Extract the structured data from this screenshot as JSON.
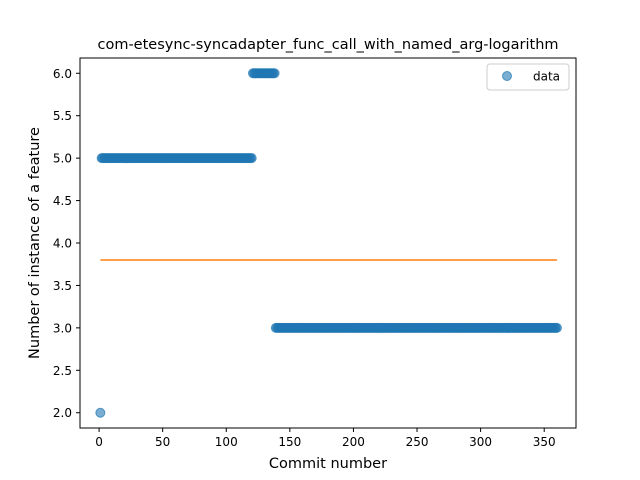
{
  "chart_data": {
    "type": "scatter",
    "title": "com-etesync-syncadapter_func_call_with_named_arg-logarithm",
    "xlabel": "Commit number",
    "ylabel": "Number of instance of a feature",
    "xlim": [
      -15,
      375
    ],
    "ylim": [
      1.82,
      6.18
    ],
    "x_ticks": [
      0,
      50,
      100,
      150,
      200,
      250,
      300,
      350
    ],
    "y_ticks": [
      2.0,
      2.5,
      3.0,
      3.5,
      4.0,
      4.5,
      5.0,
      5.5,
      6.0
    ],
    "x_tick_labels": [
      "0",
      "50",
      "100",
      "150",
      "200",
      "250",
      "300",
      "350"
    ],
    "y_tick_labels": [
      "2.0",
      "2.5",
      "3.0",
      "3.5",
      "4.0",
      "4.5",
      "5.0",
      "5.5",
      "6.0"
    ],
    "legend": {
      "position": "top-right",
      "entries": [
        "data"
      ]
    },
    "grid": false,
    "colors": {
      "data": "#1f77b4",
      "fit": "#ff7f0e"
    },
    "series": [
      {
        "name": "data",
        "kind": "points",
        "runs": [
          {
            "x_start": 1,
            "x_end": 1,
            "y": 2.0
          },
          {
            "x_start": 2,
            "x_end": 120,
            "y": 5.0
          },
          {
            "x_start": 121,
            "x_end": 138,
            "y": 6.0
          },
          {
            "x_start": 139,
            "x_end": 360,
            "y": 3.0
          }
        ]
      },
      {
        "kind": "line",
        "x": [
          1,
          360
        ],
        "y": [
          3.8,
          3.8
        ]
      }
    ]
  }
}
